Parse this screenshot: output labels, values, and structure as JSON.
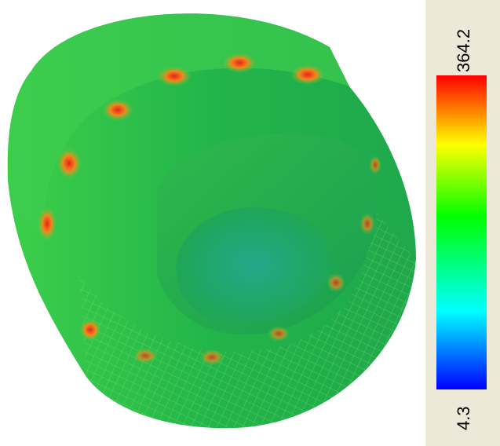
{
  "colorbar": {
    "max": 364.2,
    "min": 4.3
  }
}
